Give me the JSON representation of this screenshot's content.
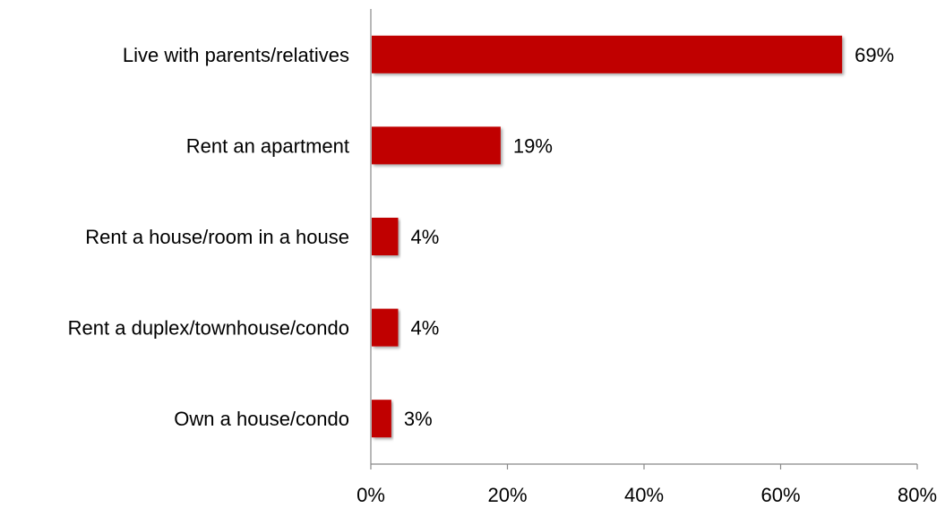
{
  "chart_data": {
    "type": "bar",
    "orientation": "horizontal",
    "title": "",
    "xlabel": "",
    "ylabel": "",
    "categories": [
      "Live with parents/relatives",
      "Rent an apartment",
      "Rent a house/room in a house",
      "Rent a duplex/townhouse/condo",
      "Own a house/condo"
    ],
    "values": [
      69,
      19,
      4,
      4,
      3
    ],
    "value_labels": [
      "69%",
      "19%",
      "4%",
      "4%",
      "3%"
    ],
    "xlim": [
      0,
      80
    ],
    "xticks": [
      0,
      20,
      40,
      60,
      80
    ],
    "xtick_labels": [
      "0%",
      "20%",
      "40%",
      "60%",
      "80%"
    ],
    "grid": false,
    "legend": "none",
    "bar_color": "#C00000"
  }
}
